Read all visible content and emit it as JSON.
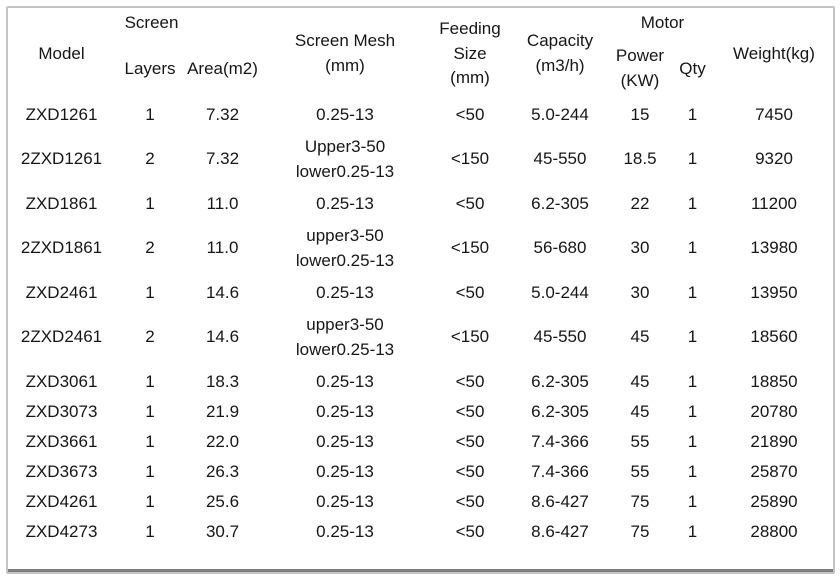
{
  "table": {
    "title_semantic": "ZXD screen model specification table",
    "header": {
      "model": "Model",
      "screen_group": "Screen",
      "layers": "Layers",
      "area": "Area(m2)",
      "screen_mesh": "Screen Mesh\n(mm)",
      "feeding_size": "Feeding\nSize\n(mm)",
      "capacity": "Capacity\n(m3/h)",
      "motor_group": "Motor",
      "power": "Power\n(KW)",
      "qty": "Qty",
      "weight": "Weight(kg)"
    },
    "rows": [
      [
        "ZXD1261",
        "1",
        "7.32",
        "0.25-13",
        "<50",
        "5.0-244",
        "15",
        "1",
        "7450"
      ],
      [
        "2ZXD1261",
        "2",
        "7.32",
        "Upper3-50\nlower0.25-13",
        "<150",
        "45-550",
        "18.5",
        "1",
        "9320"
      ],
      [
        "ZXD1861",
        "1",
        "11.0",
        "0.25-13",
        "<50",
        "6.2-305",
        "22",
        "1",
        "11200"
      ],
      [
        "2ZXD1861",
        "2",
        "11.0",
        "upper3-50\nlower0.25-13",
        "<150",
        "56-680",
        "30",
        "1",
        "13980"
      ],
      [
        "ZXD2461",
        "1",
        "14.6",
        "0.25-13",
        "<50",
        "5.0-244",
        "30",
        "1",
        "13950"
      ],
      [
        "2ZXD2461",
        "2",
        "14.6",
        "upper3-50\nlower0.25-13",
        "<150",
        "45-550",
        "45",
        "1",
        "18560"
      ],
      [
        "ZXD3061",
        "1",
        "18.3",
        "0.25-13",
        "<50",
        "6.2-305",
        "45",
        "1",
        "18850"
      ],
      [
        "ZXD3073",
        "1",
        "21.9",
        "0.25-13",
        "<50",
        "6.2-305",
        "45",
        "1",
        "20780"
      ],
      [
        "ZXD3661",
        "1",
        "22.0",
        "0.25-13",
        "<50",
        "7.4-366",
        "55",
        "1",
        "21890"
      ],
      [
        "ZXD3673",
        "1",
        "26.3",
        "0.25-13",
        "<50",
        "7.4-366",
        "55",
        "1",
        "25870"
      ],
      [
        "ZXD4261",
        "1",
        "25.6",
        "0.25-13",
        "<50",
        "8.6-427",
        "75",
        "1",
        "25890"
      ],
      [
        "ZXD4273",
        "1",
        "30.7",
        "0.25-13",
        "<50",
        "8.6-427",
        "75",
        "1",
        "28800"
      ]
    ],
    "colors": {
      "outer_border": "#c4c4c4",
      "bottom_rule": "#7e7e7e",
      "text": "#161616",
      "background": "#ffffff"
    }
  }
}
